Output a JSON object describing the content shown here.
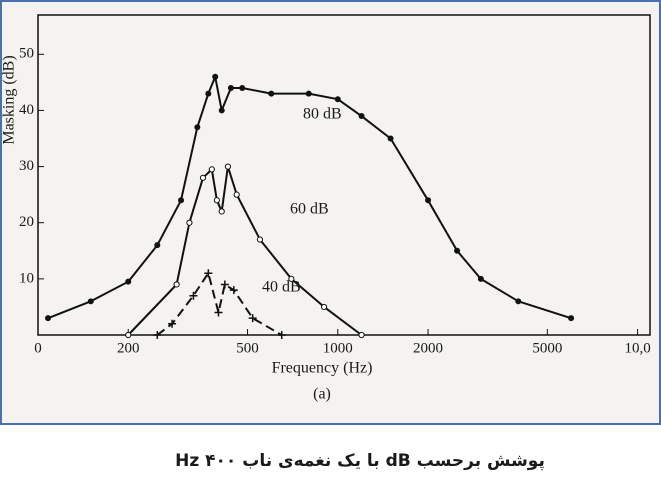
{
  "chart_data": {
    "type": "line",
    "xlabel": "Frequency (Hz)",
    "ylabel": "Masking (dB)",
    "subtitle": "(a)",
    "caption": "پوشش  برحسب dB با یک نغمه‌ی ناب Hz ۴۰۰",
    "xscale": "log",
    "xlim": [
      100,
      11000
    ],
    "ylim": [
      0,
      57
    ],
    "xticks": [
      {
        "value": 100,
        "label": "0"
      },
      200,
      500,
      1000,
      2000,
      5000,
      {
        "value": 10000,
        "label": "10,0"
      }
    ],
    "yticks": [
      10,
      20,
      30,
      40,
      50
    ],
    "series": [
      {
        "name": "80 dB",
        "color": "#111111",
        "marker": "dot",
        "dashed": false,
        "x": [
          108,
          150,
          200,
          250,
          300,
          340,
          370,
          390,
          410,
          440,
          480,
          600,
          800,
          1000,
          1200,
          1500,
          2000,
          2500,
          3000,
          4000,
          6000
        ],
        "values": [
          3,
          6,
          9.5,
          16,
          24,
          37,
          43,
          46,
          40,
          44,
          44,
          43,
          43,
          42,
          39,
          35,
          24,
          15,
          10,
          6,
          3
        ]
      },
      {
        "name": "60 dB",
        "color": "#111111",
        "marker": "circle",
        "dashed": false,
        "x": [
          200,
          290,
          320,
          355,
          380,
          395,
          410,
          430,
          460,
          550,
          700,
          900,
          1200
        ],
        "values": [
          0,
          9,
          20,
          28,
          29.5,
          24,
          22,
          30,
          25,
          17,
          10,
          5,
          0
        ]
      },
      {
        "name": "40 dB",
        "color": "#111111",
        "marker": "plus",
        "dashed": true,
        "x": [
          250,
          280,
          330,
          370,
          400,
          420,
          450,
          520,
          650
        ],
        "values": [
          0,
          2,
          7,
          11,
          4,
          9,
          8,
          3,
          0
        ]
      }
    ]
  }
}
